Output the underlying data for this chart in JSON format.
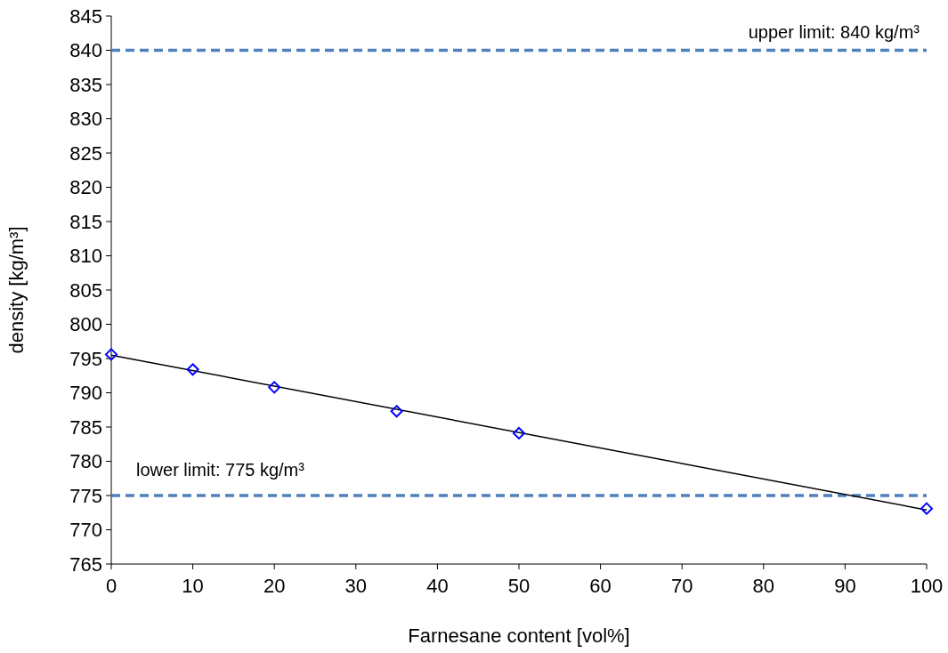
{
  "chart_data": {
    "type": "scatter",
    "xlabel": "Farnesane content [vol%]",
    "ylabel": "density [kg/m³]",
    "xlim": [
      0,
      100
    ],
    "xticks": [
      0,
      10,
      20,
      30,
      40,
      50,
      60,
      70,
      80,
      90,
      100
    ],
    "ylim": [
      765,
      845
    ],
    "yticks": [
      765,
      770,
      775,
      780,
      785,
      790,
      795,
      800,
      805,
      810,
      815,
      820,
      825,
      830,
      835,
      840,
      845
    ],
    "grid": false,
    "series": [
      {
        "type": "line",
        "color": "#000000",
        "x": [
          0,
          100
        ],
        "values": [
          795.5,
          772.9
        ],
        "marker": "none",
        "line_style": "solid"
      },
      {
        "color": "#0000ff",
        "x": [
          0,
          10,
          20,
          35,
          50,
          100
        ],
        "values": [
          795.6,
          793.4,
          790.8,
          787.3,
          784.1,
          773.1
        ],
        "marker": "diamond"
      }
    ],
    "ref_lines": [
      {
        "axis": "y",
        "value": 840,
        "label": "upper limit: 840 kg/m³",
        "color": "#4f81bd",
        "line_style": "dashed"
      },
      {
        "axis": "y",
        "value": 775,
        "label": "lower limit: 775 kg/m³",
        "color": "#4f81bd",
        "line_style": "dashed"
      }
    ]
  }
}
